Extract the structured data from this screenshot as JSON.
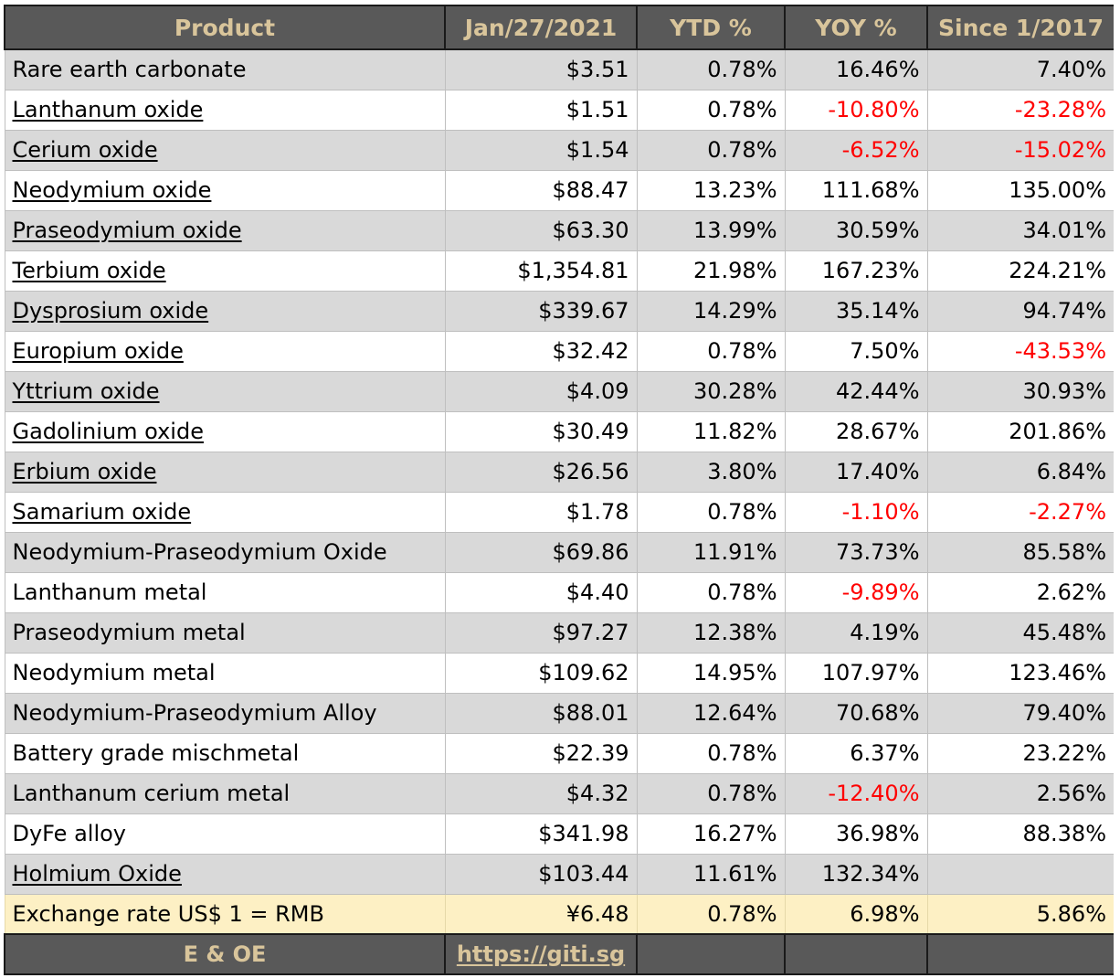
{
  "table": {
    "headers": [
      "Product",
      "Jan/27/2021",
      "YTD %",
      "YOY %",
      "Since 1/2017"
    ],
    "rows": [
      {
        "name": "Rare earth carbonate",
        "link": false,
        "price": "$3.51",
        "ytd": "0.78%",
        "yoy": "16.46%",
        "since": "7.40%",
        "yoy_neg": false,
        "since_neg": false
      },
      {
        "name": "Lanthanum oxide",
        "link": true,
        "price": "$1.51",
        "ytd": "0.78%",
        "yoy": "-10.80%",
        "since": "-23.28%",
        "yoy_neg": true,
        "since_neg": true
      },
      {
        "name": "Cerium oxide",
        "link": true,
        "price": "$1.54",
        "ytd": "0.78%",
        "yoy": "-6.52%",
        "since": "-15.02%",
        "yoy_neg": true,
        "since_neg": true
      },
      {
        "name": "Neodymium oxide",
        "link": true,
        "price": "$88.47",
        "ytd": "13.23%",
        "yoy": "111.68%",
        "since": "135.00%",
        "yoy_neg": false,
        "since_neg": false
      },
      {
        "name": "Praseodymium oxide",
        "link": true,
        "price": "$63.30",
        "ytd": "13.99%",
        "yoy": "30.59%",
        "since": "34.01%",
        "yoy_neg": false,
        "since_neg": false
      },
      {
        "name": "Terbium oxide",
        "link": true,
        "price": "$1,354.81",
        "ytd": "21.98%",
        "yoy": "167.23%",
        "since": "224.21%",
        "yoy_neg": false,
        "since_neg": false
      },
      {
        "name": "Dysprosium oxide",
        "link": true,
        "price": "$339.67",
        "ytd": "14.29%",
        "yoy": "35.14%",
        "since": "94.74%",
        "yoy_neg": false,
        "since_neg": false
      },
      {
        "name": "Europium oxide",
        "link": true,
        "price": "$32.42",
        "ytd": "0.78%",
        "yoy": "7.50%",
        "since": "-43.53%",
        "yoy_neg": false,
        "since_neg": true
      },
      {
        "name": "Yttrium oxide",
        "link": true,
        "price": "$4.09",
        "ytd": "30.28%",
        "yoy": "42.44%",
        "since": "30.93%",
        "yoy_neg": false,
        "since_neg": false
      },
      {
        "name": "Gadolinium oxide",
        "link": true,
        "price": "$30.49",
        "ytd": "11.82%",
        "yoy": "28.67%",
        "since": "201.86%",
        "yoy_neg": false,
        "since_neg": false
      },
      {
        "name": "Erbium oxide",
        "link": true,
        "price": "$26.56",
        "ytd": "3.80%",
        "yoy": "17.40%",
        "since": "6.84%",
        "yoy_neg": false,
        "since_neg": false
      },
      {
        "name": "Samarium oxide",
        "link": true,
        "price": "$1.78",
        "ytd": "0.78%",
        "yoy": "-1.10%",
        "since": "-2.27%",
        "yoy_neg": true,
        "since_neg": true
      },
      {
        "name": "Neodymium-Praseodymium Oxide",
        "link": false,
        "price": "$69.86",
        "ytd": "11.91%",
        "yoy": "73.73%",
        "since": "85.58%",
        "yoy_neg": false,
        "since_neg": false
      },
      {
        "name": "Lanthanum metal",
        "link": false,
        "price": "$4.40",
        "ytd": "0.78%",
        "yoy": "-9.89%",
        "since": "2.62%",
        "yoy_neg": true,
        "since_neg": false
      },
      {
        "name": "Praseodymium metal",
        "link": false,
        "price": "$97.27",
        "ytd": "12.38%",
        "yoy": "4.19%",
        "since": "45.48%",
        "yoy_neg": false,
        "since_neg": false
      },
      {
        "name": "Neodymium metal",
        "link": false,
        "price": "$109.62",
        "ytd": "14.95%",
        "yoy": "107.97%",
        "since": "123.46%",
        "yoy_neg": false,
        "since_neg": false
      },
      {
        "name": "Neodymium-Praseodymium Alloy",
        "link": false,
        "price": "$88.01",
        "ytd": "12.64%",
        "yoy": "70.68%",
        "since": "79.40%",
        "yoy_neg": false,
        "since_neg": false
      },
      {
        "name": "Battery grade mischmetal",
        "link": false,
        "price": "$22.39",
        "ytd": "0.78%",
        "yoy": "6.37%",
        "since": "23.22%",
        "yoy_neg": false,
        "since_neg": false
      },
      {
        "name": "Lanthanum cerium metal",
        "link": false,
        "price": "$4.32",
        "ytd": "0.78%",
        "yoy": "-12.40%",
        "since": "2.56%",
        "yoy_neg": true,
        "since_neg": false
      },
      {
        "name": "DyFe alloy",
        "link": false,
        "price": "$341.98",
        "ytd": "16.27%",
        "yoy": "36.98%",
        "since": "88.38%",
        "yoy_neg": false,
        "since_neg": false
      },
      {
        "name": "Holmium Oxide",
        "link": true,
        "price": "$103.44",
        "ytd": "11.61%",
        "yoy": "132.34%",
        "since": "",
        "yoy_neg": false,
        "since_neg": false
      }
    ],
    "exchange": {
      "name": "Exchange rate US$ 1 = RMB",
      "price": "¥6.48",
      "ytd": "0.78%",
      "yoy": "6.98%",
      "since": "5.86%"
    },
    "footer": {
      "note": "E & OE",
      "url": "https://giti.sg"
    }
  },
  "colors": {
    "header_bg": "#595959",
    "header_text": "#d9c59b",
    "row_gray": "#d9d9d9",
    "row_white": "#ffffff",
    "exchange_row": "#fdf0c4",
    "negative": "#ff0000"
  }
}
